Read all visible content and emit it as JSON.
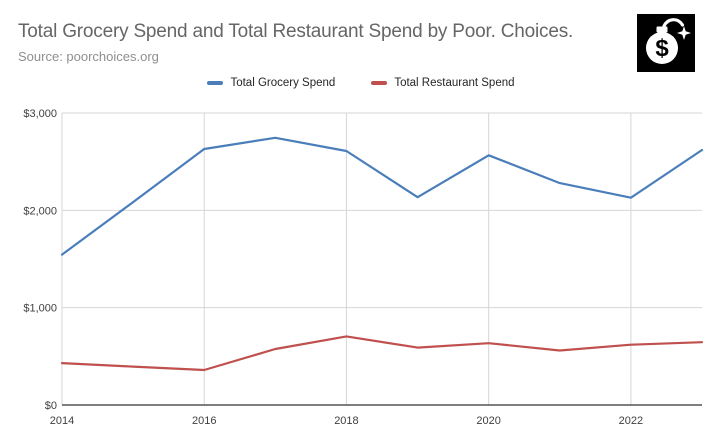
{
  "header": {
    "title": "Total Grocery Spend and Total Restaurant Spend by Poor. Choices.",
    "source": "Source: poorchoices.org"
  },
  "icon": {
    "name": "money-bomb",
    "dollar_glyph": "$",
    "background": "#000000",
    "foreground": "#ffffff"
  },
  "colors": {
    "background": "#ffffff",
    "title_text": "#666666",
    "source_text": "#8f8f8f",
    "legend_text": "#262626",
    "tick_text": "#404040",
    "gridline": "#d6d6d6",
    "axis_line": "#333333",
    "grocery_blue": "#4a7ebb",
    "restaurant_red": "#c0504d"
  },
  "chart_data": {
    "type": "line",
    "title": "Total Grocery Spend and Total Restaurant Spend by Poor. Choices.",
    "xlabel": "",
    "ylabel": "",
    "x": [
      2014,
      2015,
      2016,
      2017,
      2018,
      2019,
      2020,
      2021,
      2022,
      2023
    ],
    "series": [
      {
        "name": "Total Grocery Spend",
        "color": "#4a7ebb",
        "values": [
          1545,
          2085,
          2630,
          2745,
          2610,
          2135,
          2565,
          2280,
          2130,
          2620
        ]
      },
      {
        "name": "Total Restaurant Spend",
        "color": "#c0504d",
        "values": [
          430,
          395,
          360,
          575,
          705,
          590,
          635,
          560,
          620,
          645
        ]
      }
    ],
    "xlim": [
      2014,
      2023
    ],
    "ylim": [
      0,
      3000
    ],
    "grid": true,
    "legend_position": "top",
    "xgridlines": [
      2014,
      2016,
      2018,
      2020,
      2022
    ],
    "yticks": [
      {
        "value": 0,
        "label": "$0"
      },
      {
        "value": 1000,
        "label": "$1,000"
      },
      {
        "value": 2000,
        "label": "$2,000"
      },
      {
        "value": 3000,
        "label": "$3,000"
      }
    ],
    "xticks": [
      {
        "value": 2014,
        "label": "2014"
      },
      {
        "value": 2016,
        "label": "2016"
      },
      {
        "value": 2018,
        "label": "2018"
      },
      {
        "value": 2020,
        "label": "2020"
      },
      {
        "value": 2022,
        "label": "2022"
      }
    ]
  }
}
